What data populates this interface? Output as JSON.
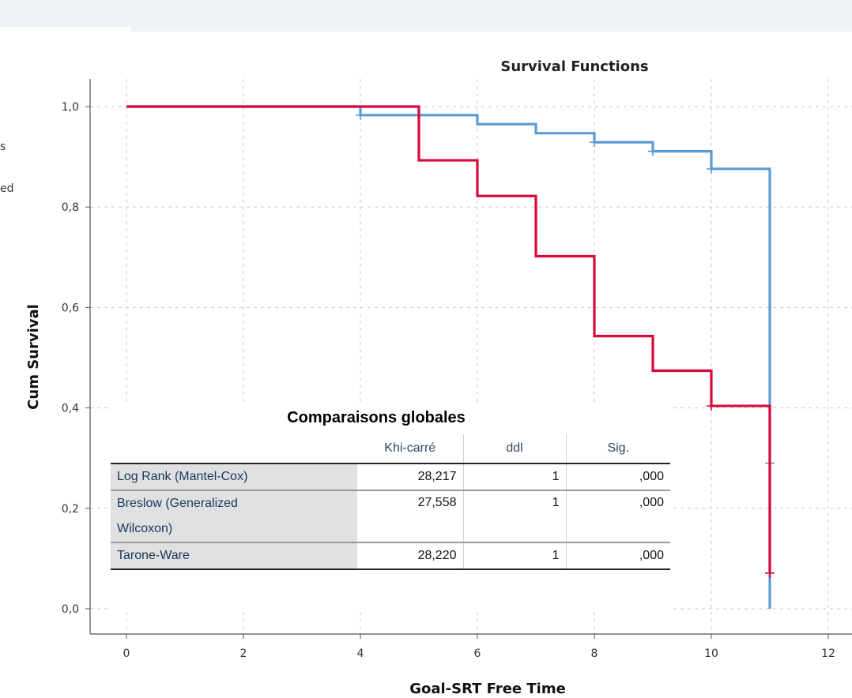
{
  "legend_fragments": [
    "s",
    "ed"
  ],
  "chart_data": {
    "type": "line",
    "title": "Survival Functions",
    "xlabel": "Goal-SRT Free Time",
    "ylabel": "Cum Survival",
    "xlim": [
      0,
      12
    ],
    "ylim": [
      0,
      1
    ],
    "x_ticks": [
      "0",
      "2",
      "4",
      "6",
      "8",
      "10",
      "12"
    ],
    "y_ticks": [
      "0,0",
      "0,2",
      "0,4",
      "0,6",
      "0,8",
      "1,0"
    ],
    "grid": true,
    "colors": {
      "series_blue": "#5b9bd5",
      "series_red": "#d9083a"
    },
    "series": [
      {
        "color": "#5b9bd5",
        "steps": [
          [
            0,
            1.0
          ],
          [
            4,
            0.983
          ],
          [
            6,
            0.965
          ],
          [
            7,
            0.947
          ],
          [
            8,
            0.929
          ],
          [
            9,
            0.911
          ],
          [
            10,
            0.876
          ],
          [
            11,
            0.0
          ]
        ],
        "censored": [
          [
            4,
            0.983
          ],
          [
            8,
            0.929
          ],
          [
            9,
            0.911
          ],
          [
            10,
            0.876
          ],
          [
            11,
            0.29
          ]
        ],
        "end_x": 11
      },
      {
        "color": "#d9083a",
        "steps": [
          [
            0,
            1.0
          ],
          [
            5,
            0.893
          ],
          [
            6,
            0.822
          ],
          [
            7,
            0.702
          ],
          [
            8,
            0.543
          ],
          [
            9,
            0.474
          ],
          [
            10,
            0.404
          ],
          [
            11,
            0.071
          ]
        ],
        "censored": [
          [
            10,
            0.404
          ],
          [
            11,
            0.071
          ]
        ],
        "end_x": 11
      }
    ]
  },
  "stats_table": {
    "title": "Comparaisons globales",
    "headers": [
      "",
      "Khi-carré",
      "ddl",
      "Sig."
    ],
    "rows": [
      {
        "label": "Log Rank (Mantel-Cox)",
        "chi": "28,217",
        "df": "1",
        "sig": ",000"
      },
      {
        "label": "Breslow (Generalized",
        "label2": "Wilcoxon)",
        "chi": "27,558",
        "df": "1",
        "sig": ",000"
      },
      {
        "label": "Tarone-Ware",
        "chi": "28,220",
        "df": "1",
        "sig": ",000"
      }
    ]
  }
}
